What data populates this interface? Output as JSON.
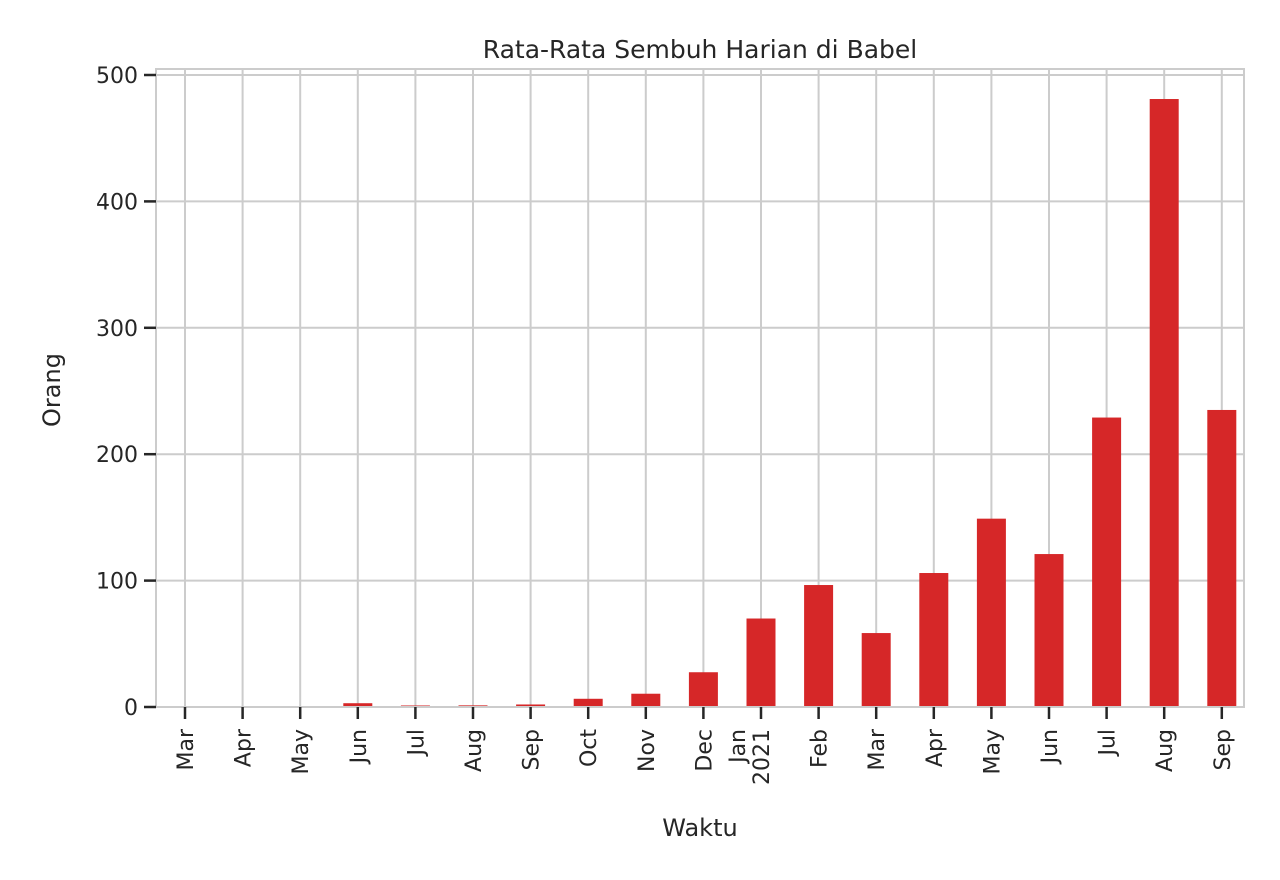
{
  "chart_data": {
    "type": "bar",
    "title": "Rata-Rata Sembuh Harian di Babel",
    "xlabel": "Waktu",
    "ylabel": "Orang",
    "ylim": [
      0,
      500
    ],
    "yticks": [
      0,
      100,
      200,
      300,
      400,
      500
    ],
    "grid": true,
    "legend": "none",
    "bar_color": "#d62728",
    "categories": [
      "Mar",
      "Apr",
      "May",
      "Jun",
      "Jul",
      "Aug",
      "Sep",
      "Oct",
      "Nov",
      "Dec",
      "Jan\n2021",
      "Feb",
      "Mar",
      "Apr",
      "May",
      "Jun",
      "Jul",
      "Aug",
      "Sep"
    ],
    "values": [
      0.0,
      0.0,
      0.1,
      3.0,
      1.2,
      1.3,
      2.0,
      6.5,
      10.5,
      27.5,
      70.0,
      96.5,
      58.5,
      106.0,
      149.0,
      121.0,
      229.0,
      481.0,
      235.0
    ]
  }
}
